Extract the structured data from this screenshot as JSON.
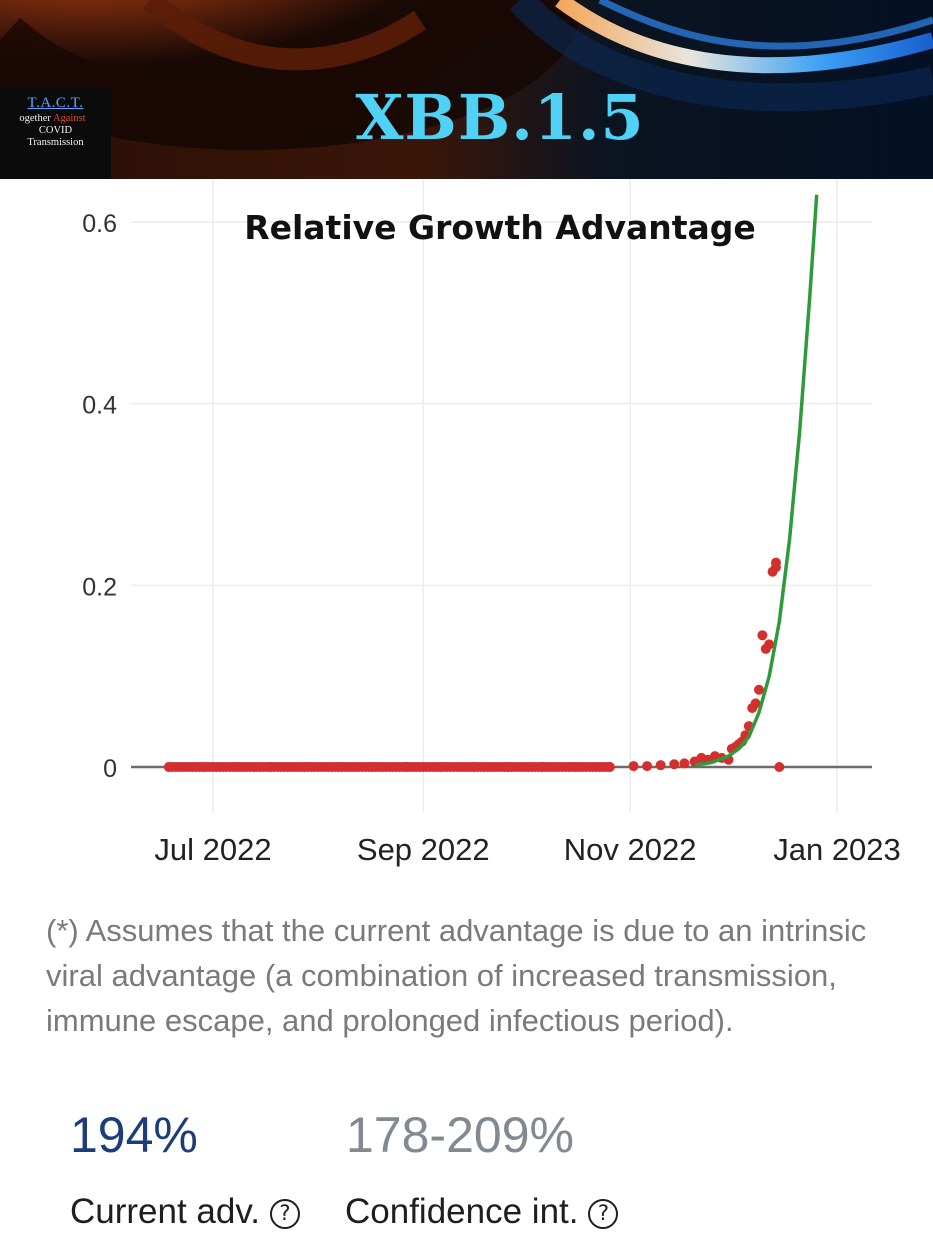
{
  "logo": {
    "line1": "T.A.C.T.",
    "line2a": "ogether",
    "line2b": "Against",
    "line3": "COVID",
    "line4": "Transmission"
  },
  "banner": {
    "title": "XBB.1.5",
    "title_color": "#4fd2f5"
  },
  "chart_data": {
    "type": "line",
    "title": "Relative Growth Advantage",
    "xlabel": "",
    "ylabel": "",
    "x_tick_labels": [
      "Jul 2022",
      "Sep 2022",
      "Nov 2022",
      "Jan 2023"
    ],
    "x_tick_dates": [
      "2022-07-01",
      "2022-09-01",
      "2022-11-01",
      "2023-01-01"
    ],
    "xlim": [
      "2022-06-08",
      "2023-01-11"
    ],
    "y_tick_labels": [
      "0",
      "0.2",
      "0.4",
      "0.6"
    ],
    "y_ticks": [
      0,
      0.2,
      0.4,
      0.6
    ],
    "ylim": [
      -0.05,
      0.63
    ],
    "grid": true,
    "series": [
      {
        "mark": "points",
        "color": "#d32f2f",
        "x": [
          "2022-06-18",
          "2022-06-28",
          "2022-07-08",
          "2022-07-18",
          "2022-07-28",
          "2022-08-07",
          "2022-08-17",
          "2022-08-27",
          "2022-09-06",
          "2022-09-16",
          "2022-09-26",
          "2022-10-06",
          "2022-10-16",
          "2022-10-26",
          "2022-11-02",
          "2022-11-06",
          "2022-11-10",
          "2022-11-14",
          "2022-11-17",
          "2022-11-20",
          "2022-11-22",
          "2022-11-24",
          "2022-11-26",
          "2022-11-28",
          "2022-11-30",
          "2022-12-01",
          "2022-12-02",
          "2022-12-03",
          "2022-12-04",
          "2022-12-05",
          "2022-12-06",
          "2022-12-07",
          "2022-12-08",
          "2022-12-09",
          "2022-12-10",
          "2022-12-11",
          "2022-12-12",
          "2022-12-13",
          "2022-12-14",
          "2022-12-14",
          "2022-12-15"
        ],
        "y": [
          0,
          0,
          0,
          0,
          0,
          0,
          0,
          0,
          0,
          0,
          0,
          0,
          0,
          0,
          0.001,
          0.001,
          0.002,
          0.003,
          0.004,
          0.006,
          0.01,
          0.008,
          0.012,
          0.01,
          0.008,
          0.02,
          0.022,
          0.025,
          0.028,
          0.035,
          0.045,
          0.065,
          0.07,
          0.085,
          0.145,
          0.13,
          0.135,
          0.215,
          0.225,
          0.22,
          0
        ]
      },
      {
        "mark": "line",
        "color": "#2e9b3a",
        "x": [
          "2022-11-20",
          "2022-11-25",
          "2022-11-30",
          "2022-12-03",
          "2022-12-06",
          "2022-12-09",
          "2022-12-12",
          "2022-12-15",
          "2022-12-18",
          "2022-12-21",
          "2022-12-24",
          "2022-12-26"
        ],
        "y": [
          0.002,
          0.005,
          0.012,
          0.02,
          0.033,
          0.06,
          0.1,
          0.16,
          0.25,
          0.37,
          0.52,
          0.63
        ]
      }
    ],
    "colors": {
      "gridline": "#ececec",
      "baseline": "#6b6b6b",
      "tick_text": "#333333"
    }
  },
  "footnote": "(*) Assumes that the current advantage is due to an intrinsic viral advantage (a combination of increased transmission, immune escape, and prolonged infectious period).",
  "stats": {
    "current_value": "194%",
    "ci_value": "178-209%",
    "current_label": "Current adv.",
    "ci_label": "Confidence int.",
    "help_glyph": "?"
  }
}
